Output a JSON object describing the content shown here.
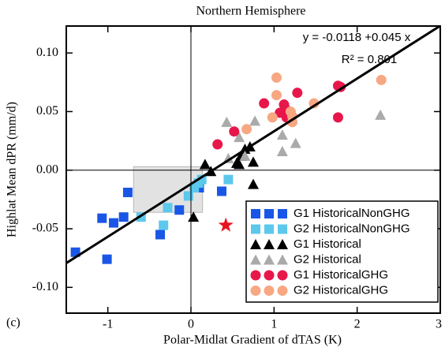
{
  "chart_data": {
    "type": "scatter",
    "title": "Northern Hemisphere",
    "x_label": "Polar-Midlat Gradient of dTAS (K)",
    "y_label": "Highlat Mean dPR (mm/d)",
    "panel_label": "(c)",
    "annotations": [
      "y = -0.0118 +0.045 x",
      "R² = 0.801"
    ],
    "fit": {
      "intercept": -0.0118,
      "slope": 0.045,
      "color": "#000000"
    },
    "xlim": [
      -1.5,
      3
    ],
    "ylim": [
      -0.122,
      0.123
    ],
    "xticks": [
      -1,
      0,
      1,
      2,
      3
    ],
    "yticks": [
      {
        "value": 0.1,
        "label": "0.10"
      },
      {
        "value": 0.05,
        "label": "0.05"
      },
      {
        "value": 0,
        "label": "0.00"
      },
      {
        "value": -0.05,
        "label": "-0.05"
      },
      {
        "value": -0.1,
        "label": "-0.10"
      }
    ],
    "highlight_box": {
      "x": [
        -0.69,
        0.14
      ],
      "y": [
        -0.036,
        0.003
      ]
    },
    "star": {
      "x": 0.42,
      "y": -0.047,
      "color": "#e8141e"
    },
    "series": [
      {
        "name": "G1 HistoricalNonGHG",
        "color": "#1a56e6",
        "marker": "square",
        "x": [
          -1.39,
          -1.07,
          -1.01,
          -0.93,
          -0.81,
          -0.76,
          -0.37,
          -0.14,
          0.37,
          0.1
        ],
        "values": [
          -0.07,
          -0.041,
          -0.076,
          -0.045,
          -0.04,
          -0.019,
          -0.055,
          -0.034,
          -0.018,
          -0.015
        ]
      },
      {
        "name": "G2 HistoricalNonGHG",
        "color": "#5cc8ec",
        "marker": "square",
        "x": [
          -0.6,
          -0.33,
          -0.28,
          -0.03,
          0.04,
          0.09,
          0.13,
          0.45
        ],
        "values": [
          -0.04,
          -0.047,
          -0.032,
          -0.022,
          -0.015,
          -0.011,
          -0.008,
          -0.008
        ]
      },
      {
        "name": "G1 Historical",
        "color": "#000000",
        "marker": "triangle",
        "x": [
          0.17,
          0.24,
          0.03,
          0.55,
          0.6,
          0.65,
          0.71,
          0.58,
          0.75,
          0.75
        ],
        "values": [
          0.005,
          -0.001,
          -0.04,
          0.006,
          0.012,
          0.018,
          0.02,
          0.005,
          -0.012,
          0.007
        ]
      },
      {
        "name": "G2 Historical",
        "color": "#aaaaaa",
        "marker": "triangle",
        "x": [
          0.43,
          0.58,
          0.45,
          0.77,
          1.1,
          1.1,
          1.26,
          2.28,
          0.65
        ],
        "values": [
          0.041,
          0.028,
          0.01,
          0.042,
          0.03,
          0.016,
          0.023,
          0.047,
          0.012
        ]
      },
      {
        "name": "G1 HistoricalGHG",
        "color": "#e8174a",
        "marker": "circle",
        "x": [
          0.32,
          0.52,
          0.88,
          1.07,
          1.12,
          1.14,
          1.15,
          1.28,
          1.77,
          1.8,
          1.77
        ],
        "values": [
          0.022,
          0.033,
          0.057,
          0.049,
          0.056,
          0.052,
          0.045,
          0.066,
          0.072,
          0.071,
          0.045
        ]
      },
      {
        "name": "G2 HistoricalGHG",
        "color": "#f7a882",
        "marker": "circle",
        "x": [
          0.67,
          1.03,
          1.03,
          0.98,
          1.22,
          1.22,
          1.48,
          2.29,
          1.2
        ],
        "values": [
          0.035,
          0.079,
          0.064,
          0.045,
          0.041,
          0.046,
          0.057,
          0.077,
          0.05
        ]
      }
    ]
  }
}
